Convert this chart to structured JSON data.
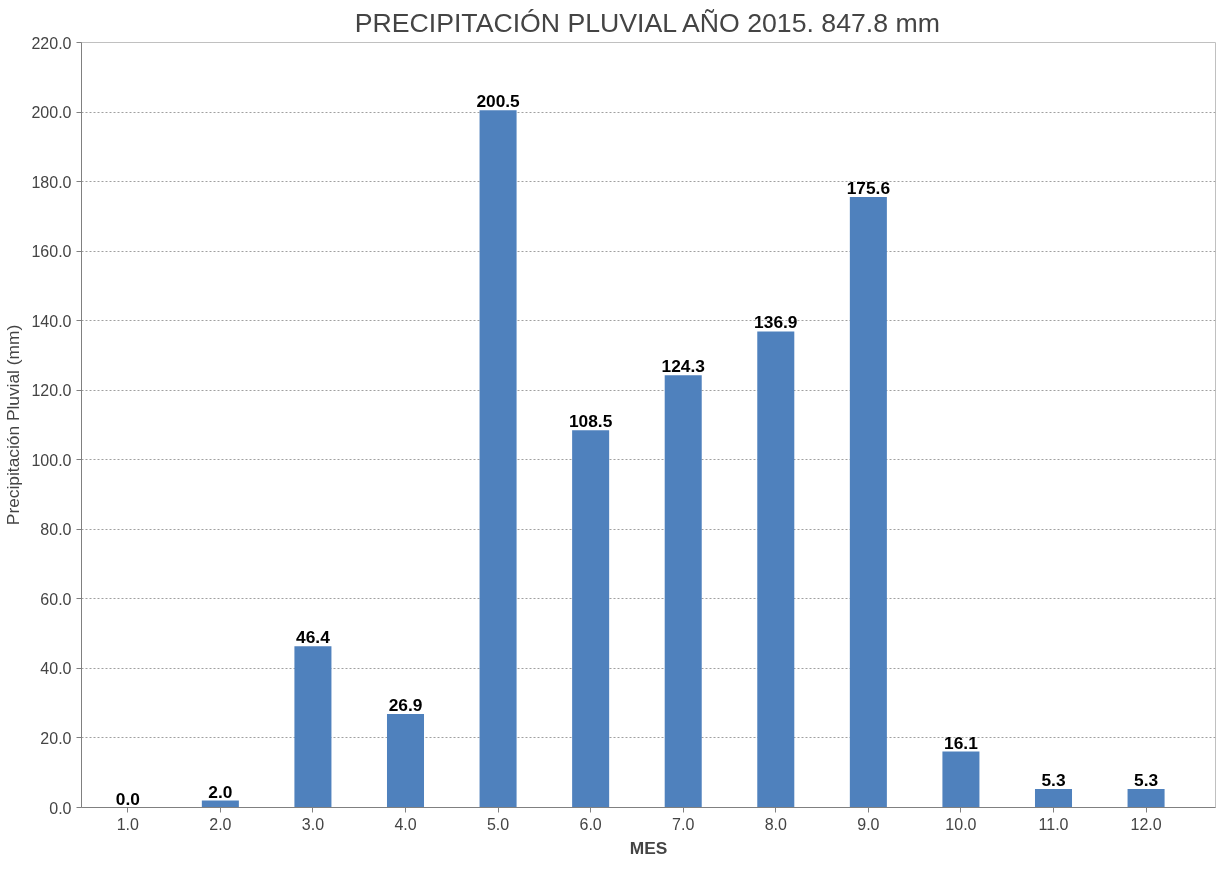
{
  "chart_data": {
    "type": "bar",
    "title": "PRECIPITACIÓN PLUVIAL AÑO 2015. 847.8 mm",
    "xlabel": "MES",
    "ylabel": "Precipitación Pluvial (mm)",
    "categories": [
      "1.0",
      "2.0",
      "3.0",
      "4.0",
      "5.0",
      "6.0",
      "7.0",
      "8.0",
      "9.0",
      "10.0",
      "11.0",
      "12.0"
    ],
    "values": [
      0.0,
      2.0,
      46.4,
      26.9,
      200.5,
      108.5,
      124.3,
      136.9,
      175.6,
      16.1,
      5.3,
      5.3
    ],
    "value_labels": [
      "0.0",
      "2.0",
      "46.4",
      "26.9",
      "200.5",
      "108.5",
      "124.3",
      "136.9",
      "175.6",
      "16.1",
      "5.3",
      "5.3"
    ],
    "color": "#4f81bd",
    "ylim": [
      0,
      220
    ],
    "yticks": [
      {
        "value": 0,
        "label": "0.0"
      },
      {
        "value": 20,
        "label": "20.0"
      },
      {
        "value": 40,
        "label": "40.0"
      },
      {
        "value": 60,
        "label": "60.0"
      },
      {
        "value": 80,
        "label": "80.0"
      },
      {
        "value": 100,
        "label": "100.0"
      },
      {
        "value": 120,
        "label": "120.0"
      },
      {
        "value": 140,
        "label": "140.0"
      },
      {
        "value": 160,
        "label": "160.0"
      },
      {
        "value": 180,
        "label": "180.0"
      },
      {
        "value": 200,
        "label": "200.0"
      },
      {
        "value": 220,
        "label": "220.0"
      }
    ],
    "grid": "y"
  }
}
